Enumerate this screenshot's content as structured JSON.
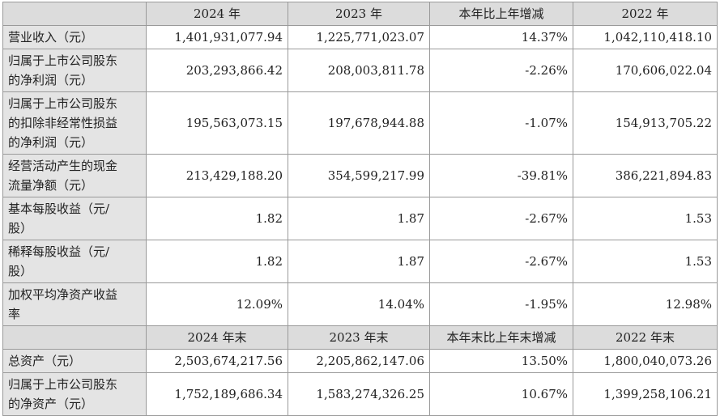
{
  "table": {
    "header": [
      "2024 年",
      "2023 年",
      "本年比上年增减",
      "2022 年"
    ],
    "rows": [
      [
        "营业收入（元）",
        "1,401,931,077.94",
        "1,225,771,023.07",
        "14.37%",
        "1,042,110,418.10"
      ],
      [
        "归属于上市公司股东的净利润（元）",
        "203,293,866.42",
        "208,003,811.78",
        "-2.26%",
        "170,606,022.04"
      ],
      [
        "归属于上市公司股东的扣除非经常性损益的净利润（元）",
        "195,563,073.15",
        "197,678,944.88",
        "-1.07%",
        "154,913,705.22"
      ],
      [
        "经营活动产生的现金流量净额（元）",
        "213,429,188.20",
        "354,599,217.99",
        "-39.81%",
        "386,221,894.83"
      ],
      [
        "基本每股收益（元/股）",
        "1.82",
        "1.87",
        "-2.67%",
        "1.53"
      ],
      [
        "稀释每股收益（元/股）",
        "1.82",
        "1.87",
        "-2.67%",
        "1.53"
      ],
      [
        "加权平均净资产收益率",
        "12.09%",
        "14.04%",
        "-1.95%",
        "12.98%"
      ]
    ],
    "header2": [
      "2024 年末",
      "2023 年末",
      "本年末比上年末增减",
      "2022 年末"
    ],
    "rows2": [
      [
        "总资产（元）",
        "2,503,674,217.56",
        "2,205,862,147.06",
        "13.50%",
        "1,800,040,073.26"
      ],
      [
        "归属于上市公司股东的净资产（元）",
        "1,752,189,686.34",
        "1,583,274,326.25",
        "10.67%",
        "1,399,258,106.21"
      ]
    ]
  }
}
